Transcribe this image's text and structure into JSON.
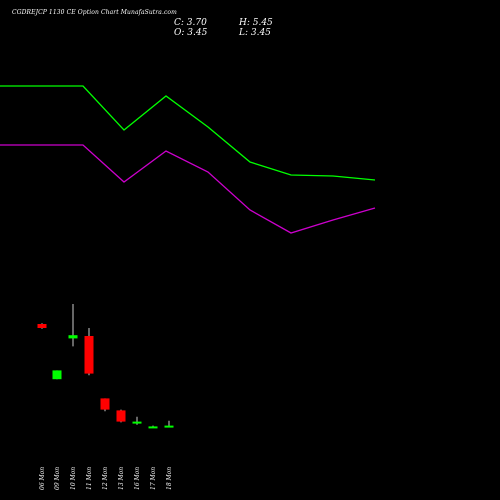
{
  "header": {
    "title": "CGDREJCP 1130  CE Option  Chart MunafaSutra.com",
    "close": "C: 3.70",
    "high": "H: 5.45",
    "open": "O: 3.45",
    "low": "L: 3.45"
  },
  "colors": {
    "background": "#000000",
    "line_upper": "#00ff00",
    "line_lower": "#cc00cc",
    "up_candle": "#00ff00",
    "down_candle": "#ff0000",
    "text": "#ffffff"
  },
  "chart_data": [
    {
      "type": "line",
      "title": "",
      "x": [
        "06 Mon",
        "09 Mon",
        "10 Mon",
        "11 Mon",
        "12 Mon",
        "13 Mon",
        "16 Mon",
        "17 Mon",
        "18 Mon"
      ],
      "series": [
        {
          "color": "#00ff00",
          "values": [
            86,
            86,
            130,
            96,
            127,
            162,
            175,
            176,
            180
          ]
        },
        {
          "color": "#cc00cc",
          "values": [
            145,
            145,
            182,
            151,
            172,
            210,
            233,
            220,
            208
          ]
        }
      ],
      "ylim": [
        0,
        250
      ],
      "ylabel": "",
      "grid": false,
      "legend": "none"
    },
    {
      "type": "candlestick",
      "title": "",
      "x": [
        "06 Mon",
        "09 Mon",
        "10 Mon",
        "11 Mon",
        "12 Mon",
        "13 Mon",
        "16 Mon",
        "17 Mon",
        "18 Mon"
      ],
      "candles": [
        {
          "date": "06 Mon",
          "open": 8.0,
          "high": 8.05,
          "low": 7.7,
          "close": 7.75,
          "color": "#ff0000"
        },
        {
          "date": "09 Mon",
          "open": 4.55,
          "high": 5.1,
          "low": 4.55,
          "close": 5.1,
          "color": "#00ff00"
        },
        {
          "date": "10 Mon",
          "open": 7.1,
          "high": 9.25,
          "low": 6.6,
          "close": 7.3,
          "color": "#00ff00"
        },
        {
          "date": "11 Mon",
          "open": 7.25,
          "high": 7.75,
          "low": 4.8,
          "close": 4.9,
          "color": "#ff0000"
        },
        {
          "date": "12 Mon",
          "open": 3.35,
          "high": 3.35,
          "low": 2.55,
          "close": 2.65,
          "color": "#ff0000"
        },
        {
          "date": "13 Mon",
          "open": 2.6,
          "high": 2.65,
          "low": 1.85,
          "close": 1.9,
          "color": "#ff0000"
        },
        {
          "date": "16 Mon",
          "open": 1.8,
          "high": 2.2,
          "low": 1.7,
          "close": 1.9,
          "color": "#00ff00"
        },
        {
          "date": "17 Mon",
          "open": 1.55,
          "high": 1.65,
          "low": 1.55,
          "close": 1.6,
          "color": "#00ff00"
        },
        {
          "date": "18 Mon",
          "open": 1.6,
          "high": 1.95,
          "low": 1.55,
          "close": 1.65,
          "color": "#00ff00"
        }
      ],
      "ylim": [
        0,
        12
      ],
      "grid": false,
      "legend": "none"
    }
  ]
}
